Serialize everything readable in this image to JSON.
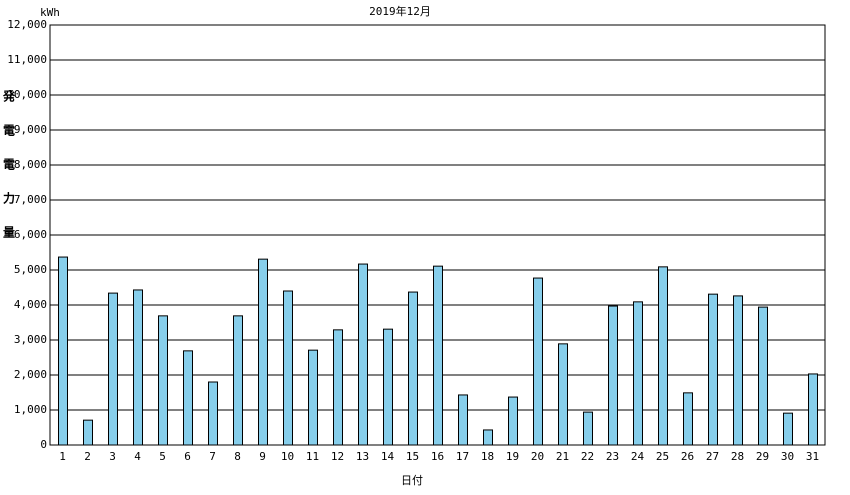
{
  "chart_data": {
    "type": "bar",
    "title": "2019年12月",
    "unit": "kWh",
    "y_label": "発電電力量",
    "x_label": "日付",
    "categories": [
      "1",
      "2",
      "3",
      "4",
      "5",
      "6",
      "7",
      "8",
      "9",
      "10",
      "11",
      "12",
      "13",
      "14",
      "15",
      "16",
      "17",
      "18",
      "19",
      "20",
      "21",
      "22",
      "23",
      "24",
      "25",
      "26",
      "27",
      "28",
      "29",
      "30",
      "31"
    ],
    "values": [
      5370,
      710,
      4340,
      4430,
      3690,
      2690,
      1800,
      3690,
      5310,
      4400,
      2710,
      3290,
      5170,
      3310,
      4370,
      5110,
      1430,
      430,
      1370,
      4770,
      2890,
      940,
      3970,
      4090,
      5090,
      1490,
      4310,
      4260,
      3940,
      910,
      2030
    ],
    "color": "#87ceeb",
    "ylim": [
      0,
      12000
    ],
    "yticks": [
      0,
      {
        "value": 1000,
        "label": "1,000"
      },
      {
        "value": 2000,
        "label": "2,000"
      },
      {
        "value": 3000,
        "label": "3,000"
      },
      {
        "value": 4000,
        "label": "4,000"
      },
      {
        "value": 5000,
        "label": "5,000"
      },
      {
        "value": 6000,
        "label": "6,000"
      },
      {
        "value": 7000,
        "label": "7,000"
      },
      {
        "value": 8000,
        "label": "8,000"
      },
      {
        "value": 9000,
        "label": "9,000"
      },
      {
        "value": 10000,
        "label": "10,000"
      },
      {
        "value": 11000,
        "label": "11,000"
      },
      {
        "value": 12000,
        "label": "12,000"
      }
    ],
    "grid": true
  }
}
